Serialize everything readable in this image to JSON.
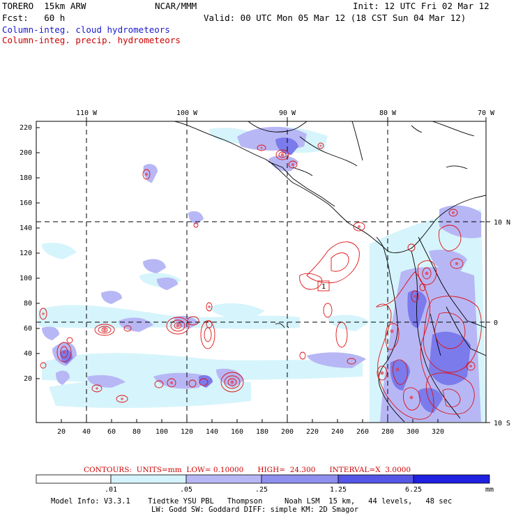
{
  "header": {
    "model": "TORERO  15km ARW",
    "org": "NCAR/MMM",
    "init": "Init: 12 UTC Fri 02 Mar 12",
    "fcst": "Fcst:   60 h",
    "valid": "Valid: 00 UTC Mon 05 Mar 12 (18 CST Sun 04 Mar 12)",
    "field1": "Column-integ. cloud hydrometeors",
    "field2": "Column-integ. precip. hydrometeors"
  },
  "colors": {
    "cloud_text": "#1a1acc",
    "precip_text": "#cc0000",
    "shade_levels": [
      "#ffffff",
      "#d6f4fb",
      "#b7b7f5",
      "#9a9aee",
      "#6f6fea",
      "#4545e6",
      "#1f1fe0"
    ]
  },
  "axes": {
    "lon_top": [
      "110 W",
      "100 W",
      "90 W",
      "80 W",
      "70 W"
    ],
    "lat_right": [
      "10 N",
      "0",
      "10 S"
    ],
    "y_left": [
      "220",
      "200",
      "180",
      "160",
      "140",
      "120",
      "100",
      "80",
      "60",
      "40",
      "20"
    ],
    "x_bottom": [
      "20",
      "40",
      "60",
      "80",
      "100",
      "120",
      "140",
      "160",
      "180",
      "200",
      "220",
      "240",
      "260",
      "280",
      "300",
      "320"
    ]
  },
  "contour_label": "1",
  "contours_line": {
    "title": "CONTOURS:",
    "units": "UNITS=mm",
    "low": "LOW= 0.10000",
    "high": "HIGH=  24.300",
    "interval": "INTERVAL=X  3.0000"
  },
  "colorbar": {
    "labels": [
      ".01",
      ".05",
      ".25",
      "1.25",
      "6.25"
    ],
    "unit": "mm"
  },
  "footer": {
    "line1": "Model Info: V3.3.1    Tiedtke YSU PBL   Thompson     Noah LSM  15 km,   44 levels,   48 sec",
    "line2": "LW: Godd SW: Goddard DIFF: simple KM: 2D Smagor"
  }
}
